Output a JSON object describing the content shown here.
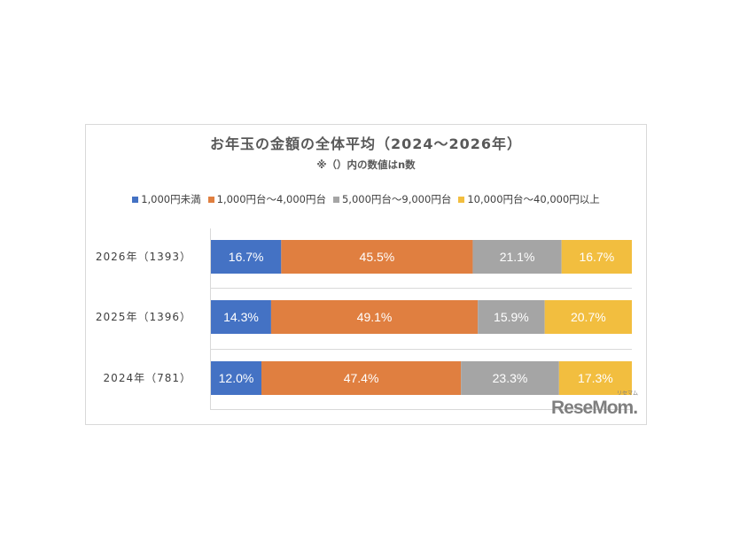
{
  "chart_data": {
    "type": "bar",
    "orientation": "horizontal",
    "stacked": "100%",
    "title": "お年玉の金額の全体平均（2024～2026年）",
    "subtitle": "※（）内の数値はn数",
    "categories": [
      "2026年（1393）",
      "2025年（1396）",
      "2024年（781）"
    ],
    "series": [
      {
        "name": "1,000円未満",
        "color": "#4472c4",
        "values": [
          16.7,
          14.3,
          12.0
        ]
      },
      {
        "name": "1,000円台～4,000円台",
        "color": "#e07f40",
        "values": [
          45.5,
          49.1,
          47.4
        ]
      },
      {
        "name": "5,000円台～9,000円台",
        "color": "#a5a5a5",
        "values": [
          21.1,
          15.9,
          23.3
        ]
      },
      {
        "name": "10,000円台～40,000円以上",
        "color": "#f2be3f",
        "values": [
          16.7,
          20.7,
          17.3
        ]
      }
    ],
    "data_label_suffix": "%",
    "legend_position": "top",
    "grid": false
  },
  "logo": {
    "text": "ReseMom",
    "kana": "リセマム"
  }
}
